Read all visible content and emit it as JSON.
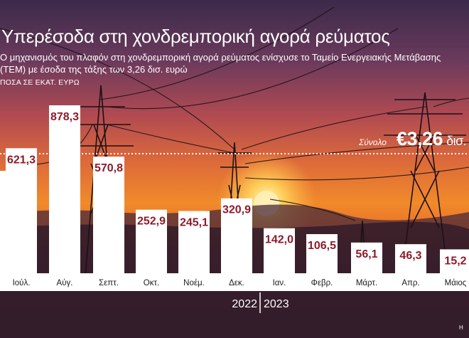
{
  "title": "Υπερέσοδα στη χονδρεμπορική αγορά ρεύματος",
  "subtitle": "Ο μηχανισμός του πλαφόν στη χονδρεμπορική αγορά ρεύματος ενίσχυσε το Ταμείο Ενεργειακής Μετάβασης (ΤΕΜ) με έσοδα της τάξης των 3,26 δισ. ευρώ",
  "unit": "ΠΟΣΑ ΣΕ ΕΚΑΤ. ΕΥΡΩ",
  "total": {
    "label": "Σύνολο",
    "value": "€3,26",
    "unit": "δισ."
  },
  "credit": "Η",
  "colors": {
    "bar": "#ffffff",
    "value_text": "#8e1b2a",
    "axis_strip": "#ffffff",
    "month_text": "#1a1a1a"
  },
  "chart_data": {
    "type": "bar",
    "categories": [
      "",
      "Ιούλ.",
      "Αύγ.",
      "Σεπτ.",
      "Οκτ.",
      "Νοέμ.",
      "Δεκ.",
      "Ιαν.",
      "Φεβρ.",
      "Μάρτ.",
      "Απρ.",
      "Μάιος"
    ],
    "values": [
      null,
      621.3,
      878.3,
      570.8,
      252.9,
      245.1,
      320.9,
      142.0,
      106.5,
      56.1,
      46.3,
      15.2
    ],
    "value_labels": [
      "",
      "621,3",
      "878,3",
      "570,8",
      "252,9",
      "245,1",
      "320,9",
      "142,0",
      "106,5",
      "56,1",
      "46,3",
      "15,2"
    ],
    "years": [
      {
        "label": "2022",
        "from": "Ιούλ.",
        "to": "Δεκ."
      },
      {
        "label": "2023",
        "from": "Ιαν.",
        "to": "Μάιος"
      }
    ],
    "reference_line": {
      "label": "Σύνολο",
      "style": "dotted"
    },
    "grid": false,
    "legend": "none"
  }
}
